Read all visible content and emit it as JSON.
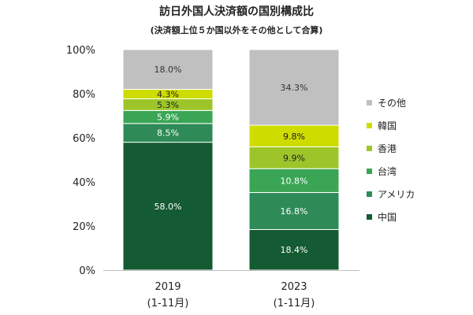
{
  "chart_data": {
    "type": "bar",
    "stacked": true,
    "title": "訪日外国人決済額の国別構成比",
    "subtitle": "(決済額上位５か国以外をその他として合算)",
    "categories": [
      {
        "label": "2019",
        "sublabel": "(1-11月)"
      },
      {
        "label": "2023",
        "sublabel": "(1-11月)"
      }
    ],
    "ylim": [
      0,
      100
    ],
    "yticks": [
      0,
      20,
      40,
      60,
      80,
      100
    ],
    "ytick_labels": [
      "0%",
      "20%",
      "40%",
      "60%",
      "80%",
      "100%"
    ],
    "series": [
      {
        "name": "中国",
        "color": "#145a32",
        "label_color": "#ffffff",
        "values": [
          58.0,
          18.4
        ],
        "labels": [
          "58.0%",
          "18.4%"
        ]
      },
      {
        "name": "アメリカ",
        "color": "#2e8b57",
        "label_color": "#ffffff",
        "values": [
          8.5,
          16.8
        ],
        "labels": [
          "8.5%",
          "16.8%"
        ]
      },
      {
        "name": "台湾",
        "color": "#3aa655",
        "label_color": "#ffffff",
        "values": [
          5.9,
          10.8
        ],
        "labels": [
          "5.9%",
          "10.8%"
        ]
      },
      {
        "name": "香港",
        "color": "#9dc52a",
        "label_color": "#222222",
        "values": [
          5.3,
          9.9
        ],
        "labels": [
          "5.3%",
          "9.9%"
        ]
      },
      {
        "name": "韓国",
        "color": "#cfdc00",
        "label_color": "#222222",
        "values": [
          4.3,
          9.8
        ],
        "labels": [
          "4.3%",
          "9.8%"
        ]
      },
      {
        "name": "その他",
        "color": "#c0c0c0",
        "label_color": "#333333",
        "values": [
          18.0,
          34.3
        ],
        "labels": [
          "18.0%",
          "34.3%"
        ]
      }
    ],
    "legend_order": [
      "その他",
      "韓国",
      "香港",
      "台湾",
      "アメリカ",
      "中国"
    ],
    "legend_position": "right",
    "grid": false
  }
}
